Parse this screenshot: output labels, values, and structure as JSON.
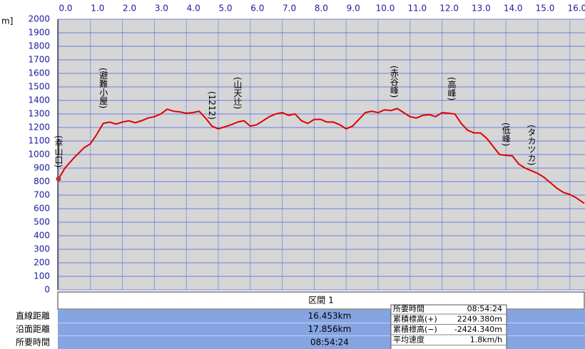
{
  "chart_data": {
    "type": "line",
    "y_label": "m]",
    "color": "#e00000",
    "grid": true,
    "xlim": [
      0,
      16.47
    ],
    "ylim": [
      0,
      2000
    ],
    "xticks": [
      {
        "value": 0,
        "label": "0.0"
      },
      {
        "value": 1,
        "label": "1.0"
      },
      {
        "value": 2,
        "label": "2.0"
      },
      {
        "value": 3,
        "label": "3.0"
      },
      {
        "value": 4,
        "label": "4.0"
      },
      {
        "value": 5,
        "label": "5.0"
      },
      {
        "value": 6,
        "label": "6.0"
      },
      {
        "value": 7,
        "label": "7.0"
      },
      {
        "value": 8,
        "label": "8.0"
      },
      {
        "value": 9,
        "label": "9.0"
      },
      {
        "value": 10,
        "label": "10.0"
      },
      {
        "value": 11,
        "label": "11.0"
      },
      {
        "value": 12,
        "label": "12.0"
      },
      {
        "value": 13,
        "label": "13.0"
      },
      {
        "value": 14,
        "label": "14.0"
      },
      {
        "value": 15,
        "label": "15.0"
      },
      {
        "value": 16,
        "label": "16.0"
      }
    ],
    "yticks": [
      0,
      100,
      200,
      300,
      400,
      500,
      600,
      700,
      800,
      900,
      1000,
      1100,
      1200,
      1300,
      1400,
      1500,
      1600,
      1700,
      1800,
      1900,
      2000
    ],
    "x": [
      0,
      0.2,
      0.5,
      0.8,
      1.0,
      1.2,
      1.4,
      1.6,
      1.8,
      2.0,
      2.2,
      2.4,
      2.6,
      2.8,
      3.0,
      3.2,
      3.4,
      3.6,
      3.8,
      4.0,
      4.2,
      4.4,
      4.6,
      4.8,
      5.0,
      5.2,
      5.4,
      5.6,
      5.8,
      6.0,
      6.2,
      6.4,
      6.6,
      6.8,
      7.0,
      7.2,
      7.4,
      7.6,
      7.8,
      8.0,
      8.2,
      8.4,
      8.6,
      8.8,
      9.0,
      9.2,
      9.4,
      9.6,
      9.8,
      10.0,
      10.2,
      10.4,
      10.6,
      10.8,
      11.0,
      11.2,
      11.4,
      11.6,
      11.8,
      12.0,
      12.2,
      12.4,
      12.6,
      12.8,
      13.0,
      13.2,
      13.4,
      13.6,
      13.8,
      14.0,
      14.2,
      14.4,
      14.6,
      14.8,
      15.0,
      15.2,
      15.4,
      15.6,
      15.8,
      16.0,
      16.2,
      16.45
    ],
    "values": [
      820,
      900,
      980,
      1050,
      1080,
      1150,
      1230,
      1240,
      1225,
      1240,
      1250,
      1235,
      1250,
      1270,
      1280,
      1300,
      1335,
      1320,
      1315,
      1305,
      1310,
      1320,
      1270,
      1210,
      1190,
      1205,
      1220,
      1240,
      1250,
      1210,
      1220,
      1250,
      1280,
      1300,
      1310,
      1290,
      1300,
      1250,
      1230,
      1260,
      1260,
      1240,
      1240,
      1220,
      1190,
      1210,
      1260,
      1310,
      1320,
      1310,
      1330,
      1325,
      1340,
      1310,
      1280,
      1270,
      1290,
      1295,
      1280,
      1310,
      1305,
      1300,
      1230,
      1180,
      1160,
      1160,
      1120,
      1060,
      1000,
      995,
      990,
      930,
      900,
      880,
      860,
      830,
      790,
      750,
      720,
      705,
      680,
      640
    ],
    "annotations": [
      {
        "text": "(幸山口)",
        "x": 0
      },
      {
        "text": "(避難小屋)",
        "x": 1.4
      },
      {
        "text": "(1212)",
        "x": 4.8
      },
      {
        "text": "(山天辻)",
        "x": 5.6
      },
      {
        "text": "(赤谷峰)",
        "x": 10.5
      },
      {
        "text": "(高峰)",
        "x": 12.3
      },
      {
        "text": "(低峰)",
        "x": 14.0
      },
      {
        "text": "(タカツカ)",
        "x": 14.8
      }
    ]
  },
  "panel": {
    "header": "区間 1",
    "rows": [
      {
        "label": "直線距離",
        "value": "16.453km"
      },
      {
        "label": "沿面距離",
        "value": "17.856km"
      },
      {
        "label": "所要時間",
        "value": "08:54:24"
      }
    ]
  },
  "summary": {
    "rows": [
      {
        "label": "所要時間",
        "value": "08:54:24"
      },
      {
        "label": "累積標高(+)",
        "value": "2249.380m"
      },
      {
        "label": "累積標高(−)",
        "value": "-2424.340m"
      },
      {
        "label": "平均速度",
        "value": "1.8km/h"
      }
    ]
  }
}
